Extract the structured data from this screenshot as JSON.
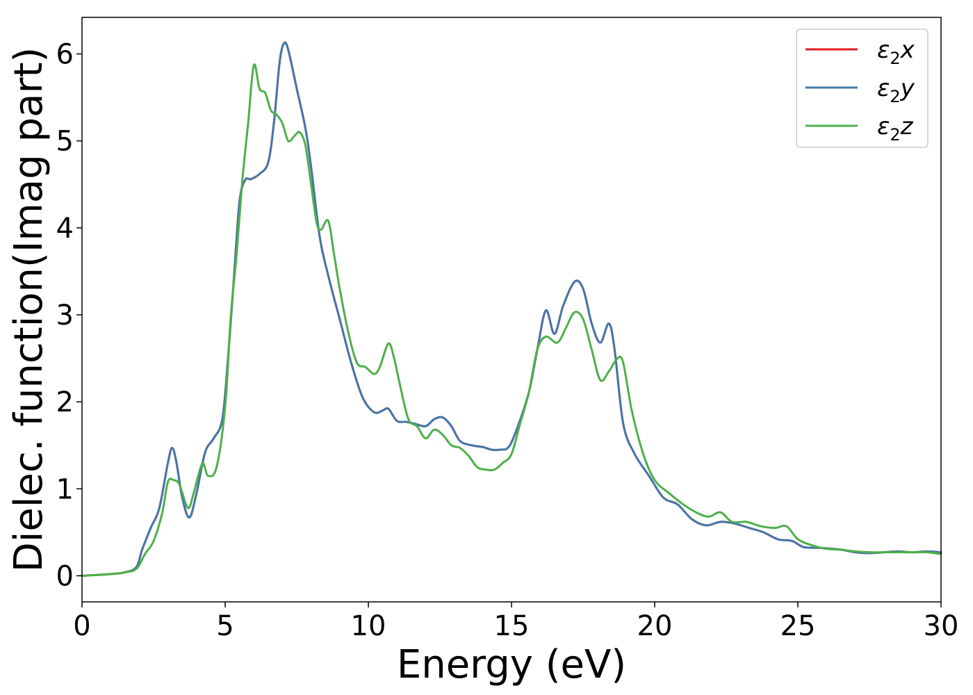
{
  "chart_data": {
    "type": "line",
    "title": "",
    "xlabel": "Energy (eV)",
    "ylabel": "Dielec. function(Imag part)",
    "xlim": [
      0,
      30
    ],
    "ylim": [
      -0.3,
      6.42
    ],
    "xticks": [
      0,
      5,
      10,
      15,
      20,
      25,
      30
    ],
    "yticks": [
      0,
      1,
      2,
      3,
      4,
      5,
      6
    ],
    "grid": false,
    "legend_position": "top-right",
    "series": [
      {
        "name": "ε2x",
        "legend_main": "ε",
        "legend_sub": "2",
        "legend_suffix": "x",
        "color": "#e41a1c",
        "x": [
          0,
          1,
          1.5,
          1.9,
          2.1,
          2.4,
          2.7,
          3.0,
          3.15,
          3.3,
          3.5,
          3.75,
          4.0,
          4.3,
          4.6,
          4.9,
          5.1,
          5.3,
          5.5,
          5.7,
          5.9,
          6.2,
          6.5,
          6.7,
          6.9,
          7.05,
          7.2,
          7.5,
          7.8,
          8.0,
          8.3,
          8.6,
          9.0,
          9.4,
          9.8,
          10.2,
          10.5,
          10.7,
          11.0,
          11.3,
          11.6,
          12.0,
          12.3,
          12.6,
          12.9,
          13.2,
          13.6,
          14.0,
          14.3,
          14.6,
          14.9,
          15.2,
          15.6,
          15.9,
          16.2,
          16.5,
          16.8,
          17.2,
          17.5,
          17.8,
          18.1,
          18.4,
          18.6,
          18.9,
          19.3,
          19.8,
          20.3,
          20.8,
          21.3,
          21.8,
          22.3,
          22.8,
          23.3,
          23.8,
          24.3,
          24.8,
          25.2,
          25.8,
          26.5,
          27.0,
          27.5,
          28.0,
          28.5,
          29.0,
          29.5,
          30.0
        ],
        "values": [
          0.0,
          0.02,
          0.04,
          0.1,
          0.3,
          0.55,
          0.78,
          1.3,
          1.47,
          1.3,
          0.9,
          0.67,
          0.95,
          1.42,
          1.58,
          1.8,
          2.5,
          3.4,
          4.3,
          4.55,
          4.56,
          4.62,
          4.75,
          5.2,
          5.9,
          6.12,
          6.05,
          5.6,
          5.15,
          4.7,
          3.9,
          3.45,
          2.95,
          2.45,
          2.05,
          1.88,
          1.9,
          1.92,
          1.78,
          1.77,
          1.75,
          1.72,
          1.8,
          1.82,
          1.72,
          1.55,
          1.5,
          1.48,
          1.45,
          1.45,
          1.48,
          1.7,
          2.1,
          2.6,
          3.05,
          2.78,
          3.1,
          3.38,
          3.3,
          2.9,
          2.68,
          2.9,
          2.6,
          1.75,
          1.4,
          1.15,
          0.9,
          0.82,
          0.65,
          0.58,
          0.62,
          0.6,
          0.55,
          0.5,
          0.42,
          0.4,
          0.33,
          0.32,
          0.3,
          0.27,
          0.26,
          0.27,
          0.28,
          0.27,
          0.28,
          0.27
        ]
      },
      {
        "name": "ε2y",
        "legend_main": "ε",
        "legend_sub": "2",
        "legend_suffix": "y",
        "color": "#4477aa",
        "x": [
          0,
          1,
          1.5,
          1.9,
          2.1,
          2.4,
          2.7,
          3.0,
          3.15,
          3.3,
          3.5,
          3.75,
          4.0,
          4.3,
          4.6,
          4.9,
          5.1,
          5.3,
          5.5,
          5.7,
          5.9,
          6.2,
          6.5,
          6.7,
          6.9,
          7.05,
          7.2,
          7.5,
          7.8,
          8.0,
          8.3,
          8.6,
          9.0,
          9.4,
          9.8,
          10.2,
          10.5,
          10.7,
          11.0,
          11.3,
          11.6,
          12.0,
          12.3,
          12.6,
          12.9,
          13.2,
          13.6,
          14.0,
          14.3,
          14.6,
          14.9,
          15.2,
          15.6,
          15.9,
          16.2,
          16.5,
          16.8,
          17.2,
          17.5,
          17.8,
          18.1,
          18.4,
          18.6,
          18.9,
          19.3,
          19.8,
          20.3,
          20.8,
          21.3,
          21.8,
          22.3,
          22.8,
          23.3,
          23.8,
          24.3,
          24.8,
          25.2,
          25.8,
          26.5,
          27.0,
          27.5,
          28.0,
          28.5,
          29.0,
          29.5,
          30.0
        ],
        "values": [
          0.0,
          0.02,
          0.04,
          0.1,
          0.3,
          0.55,
          0.78,
          1.3,
          1.47,
          1.3,
          0.9,
          0.67,
          0.95,
          1.42,
          1.58,
          1.8,
          2.5,
          3.4,
          4.3,
          4.55,
          4.56,
          4.62,
          4.75,
          5.2,
          5.9,
          6.12,
          6.05,
          5.6,
          5.15,
          4.7,
          3.9,
          3.45,
          2.95,
          2.45,
          2.05,
          1.88,
          1.9,
          1.92,
          1.78,
          1.77,
          1.75,
          1.72,
          1.8,
          1.82,
          1.72,
          1.55,
          1.5,
          1.48,
          1.45,
          1.45,
          1.48,
          1.7,
          2.1,
          2.6,
          3.05,
          2.78,
          3.1,
          3.38,
          3.3,
          2.9,
          2.68,
          2.9,
          2.6,
          1.75,
          1.4,
          1.15,
          0.9,
          0.82,
          0.65,
          0.58,
          0.62,
          0.6,
          0.55,
          0.5,
          0.42,
          0.4,
          0.33,
          0.32,
          0.3,
          0.27,
          0.26,
          0.27,
          0.28,
          0.27,
          0.28,
          0.27
        ]
      },
      {
        "name": "ε2z",
        "legend_main": "ε",
        "legend_sub": "2",
        "legend_suffix": "z",
        "color": "#4daf4a",
        "x": [
          0,
          1,
          1.5,
          1.9,
          2.2,
          2.5,
          2.8,
          3.0,
          3.2,
          3.4,
          3.7,
          3.9,
          4.2,
          4.4,
          4.7,
          5.0,
          5.2,
          5.4,
          5.6,
          5.8,
          6.0,
          6.2,
          6.4,
          6.6,
          6.8,
          7.0,
          7.2,
          7.4,
          7.6,
          7.8,
          8.0,
          8.2,
          8.35,
          8.6,
          8.8,
          9.0,
          9.3,
          9.6,
          9.9,
          10.2,
          10.4,
          10.7,
          10.9,
          11.1,
          11.4,
          11.7,
          12.0,
          12.3,
          12.6,
          12.9,
          13.2,
          13.5,
          13.8,
          14.1,
          14.4,
          14.7,
          15.0,
          15.3,
          15.6,
          15.9,
          16.2,
          16.6,
          16.9,
          17.2,
          17.5,
          17.8,
          18.1,
          18.4,
          18.7,
          18.9,
          19.2,
          19.6,
          20.0,
          20.5,
          21.0,
          21.5,
          21.9,
          22.3,
          22.7,
          23.2,
          23.7,
          24.2,
          24.6,
          25.0,
          25.5,
          26.0,
          26.5,
          27.0,
          27.5,
          28.0,
          28.5,
          29.0,
          29.5,
          30.0
        ],
        "values": [
          0.0,
          0.02,
          0.04,
          0.08,
          0.25,
          0.4,
          0.72,
          1.08,
          1.1,
          1.05,
          0.78,
          0.95,
          1.29,
          1.15,
          1.25,
          1.95,
          3.0,
          3.7,
          4.55,
          5.2,
          5.87,
          5.6,
          5.55,
          5.35,
          5.3,
          5.2,
          5.0,
          5.05,
          5.1,
          4.95,
          4.5,
          4.05,
          3.98,
          4.08,
          3.7,
          3.3,
          2.8,
          2.45,
          2.4,
          2.32,
          2.4,
          2.67,
          2.5,
          2.2,
          1.8,
          1.72,
          1.58,
          1.68,
          1.62,
          1.5,
          1.47,
          1.38,
          1.25,
          1.22,
          1.22,
          1.3,
          1.4,
          1.75,
          2.1,
          2.6,
          2.75,
          2.68,
          2.85,
          3.03,
          2.95,
          2.6,
          2.25,
          2.35,
          2.5,
          2.45,
          1.9,
          1.4,
          1.1,
          0.95,
          0.82,
          0.72,
          0.68,
          0.73,
          0.62,
          0.62,
          0.57,
          0.55,
          0.57,
          0.42,
          0.35,
          0.31,
          0.3,
          0.28,
          0.27,
          0.27,
          0.27,
          0.27,
          0.27,
          0.25
        ]
      }
    ]
  }
}
